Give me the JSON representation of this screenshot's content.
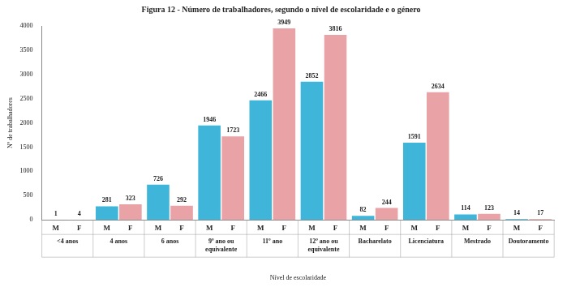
{
  "chart_data": {
    "type": "bar",
    "title": "Figura 12 - Número de trabalhadores, segundo o nível de escolaridade e o género",
    "x_label": "Nível de escolaridade",
    "y_label": "Nº de trabalhadores",
    "categories": [
      "<4 anos",
      "4 anos",
      "6 anos",
      "9º ano ou equivalente",
      "11º ano",
      "12º ano ou equivalente",
      "Bacharelato",
      "Licenciatura",
      "Mestrado",
      "Doutoramento"
    ],
    "series": [
      {
        "name": "M",
        "color": "#3fb6d9",
        "values": [
          1,
          281,
          726,
          1946,
          2466,
          2852,
          82,
          1591,
          114,
          14
        ]
      },
      {
        "name": "F",
        "color": "#e9a2a6",
        "values": [
          4,
          323,
          292,
          1723,
          3949,
          3816,
          244,
          2634,
          123,
          17
        ]
      }
    ],
    "ylim": [
      0,
      4000
    ],
    "yticks": [
      0,
      500,
      1000,
      1500,
      2000,
      2500,
      3000,
      3500,
      4000
    ],
    "grid": false,
    "data_labels": true
  }
}
